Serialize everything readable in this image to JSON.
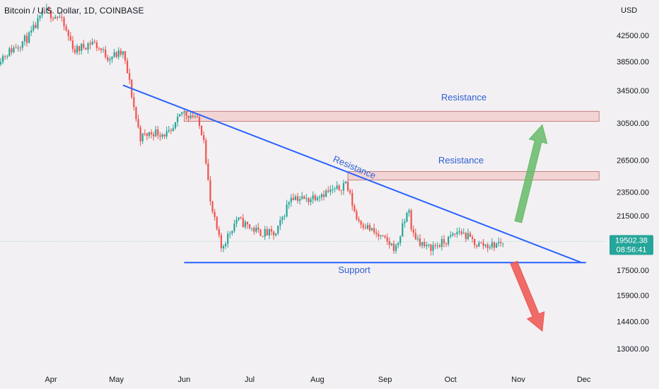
{
  "header": {
    "title": "Bitcoin / U.S. Dollar, 1D, COINBASE",
    "currency": "USD"
  },
  "price_tag": {
    "price": "19502.38",
    "countdown": "08:56:41",
    "color": "#26a69a"
  },
  "chart_data": {
    "type": "candlestick",
    "title": "Bitcoin / U.S. Dollar, 1D, COINBASE",
    "y_axis_unit": "USD",
    "y_scale": "log",
    "y_ticks": [
      42500,
      38500,
      34500,
      30500,
      26500,
      23500,
      21500,
      17500,
      15900,
      14400,
      13000
    ],
    "y_tick_labels": [
      "42500.00",
      "38500.00",
      "34500.00",
      "30500.00",
      "26500.00",
      "23500.00",
      "21500.00",
      "17500.00",
      "15900.00",
      "14400.00",
      "13000.00"
    ],
    "x_tick_labels": [
      "Apr",
      "May",
      "Jun",
      "Jul",
      "Aug",
      "Sep",
      "Oct",
      "Nov",
      "Dec"
    ],
    "x_tick_dates": [
      "2022-04-01",
      "2022-05-01",
      "2022-06-01",
      "2022-07-01",
      "2022-08-01",
      "2022-09-01",
      "2022-10-01",
      "2022-11-01",
      "2022-12-01"
    ],
    "colors": {
      "up": "#26a69a",
      "down": "#ef5350",
      "trendline": "#2962ff",
      "zone_fill": "#f3d2d2",
      "zone_border": "#b35c5c",
      "arrow_up": "#66bb6a",
      "arrow_down": "#ef5350"
    },
    "price_path": [
      {
        "date": "2022-03-08",
        "close": 38800
      },
      {
        "date": "2022-03-15",
        "close": 40500
      },
      {
        "date": "2022-03-22",
        "close": 42300
      },
      {
        "date": "2022-03-29",
        "close": 46500
      },
      {
        "date": "2022-04-05",
        "close": 45500
      },
      {
        "date": "2022-04-12",
        "close": 40100
      },
      {
        "date": "2022-04-20",
        "close": 41500
      },
      {
        "date": "2022-04-27",
        "close": 39200
      },
      {
        "date": "2022-05-04",
        "close": 39700
      },
      {
        "date": "2022-05-07",
        "close": 35500
      },
      {
        "date": "2022-05-10",
        "close": 31000
      },
      {
        "date": "2022-05-12",
        "close": 28900
      },
      {
        "date": "2022-05-18",
        "close": 29500
      },
      {
        "date": "2022-05-26",
        "close": 29200
      },
      {
        "date": "2022-05-31",
        "close": 31800
      },
      {
        "date": "2022-06-06",
        "close": 31300
      },
      {
        "date": "2022-06-10",
        "close": 29000
      },
      {
        "date": "2022-06-13",
        "close": 22500
      },
      {
        "date": "2022-06-18",
        "close": 19000
      },
      {
        "date": "2022-06-25",
        "close": 21200
      },
      {
        "date": "2022-07-05",
        "close": 20200
      },
      {
        "date": "2022-07-13",
        "close": 20000
      },
      {
        "date": "2022-07-20",
        "close": 23200
      },
      {
        "date": "2022-07-27",
        "close": 22800
      },
      {
        "date": "2022-08-01",
        "close": 23300
      },
      {
        "date": "2022-08-10",
        "close": 23700
      },
      {
        "date": "2022-08-14",
        "close": 24400
      },
      {
        "date": "2022-08-19",
        "close": 21300
      },
      {
        "date": "2022-08-28",
        "close": 20000
      },
      {
        "date": "2022-09-06",
        "close": 19000
      },
      {
        "date": "2022-09-12",
        "close": 22200
      },
      {
        "date": "2022-09-13",
        "close": 20200
      },
      {
        "date": "2022-09-20",
        "close": 19000
      },
      {
        "date": "2022-09-28",
        "close": 19400
      },
      {
        "date": "2022-10-05",
        "close": 20300
      },
      {
        "date": "2022-10-13",
        "close": 19300
      },
      {
        "date": "2022-10-20",
        "close": 19200
      },
      {
        "date": "2022-10-25",
        "close": 19502
      }
    ],
    "trendlines": [
      {
        "name": "descending resistance",
        "from": {
          "date": "2022-05-04",
          "price": 35200
        },
        "to": {
          "date": "2022-11-30",
          "price": 18000
        }
      },
      {
        "name": "support",
        "from": {
          "date": "2022-06-01",
          "price": 18000
        },
        "to": {
          "date": "2022-12-02",
          "price": 18000
        }
      }
    ],
    "resistance_zones": [
      {
        "label": "Resistance",
        "from_date": "2022-06-01",
        "to_date": "2022-12-08",
        "low": 30700,
        "high": 31900
      },
      {
        "label": "Resistance",
        "from_date": "2022-08-15",
        "to_date": "2022-12-08",
        "low": 24600,
        "high": 25400
      }
    ],
    "annotations": {
      "zone_top_label": "Resistance",
      "zone_mid_label": "Resistance",
      "trendline_label": "Resistance",
      "support_label": "Support"
    },
    "arrows": [
      {
        "direction": "up",
        "from": {
          "date": "2022-11-01",
          "price": 21000
        },
        "to": {
          "date": "2022-11-12",
          "price": 30300
        }
      },
      {
        "direction": "down",
        "from": {
          "date": "2022-10-30",
          "price": 18000
        },
        "to": {
          "date": "2022-11-12",
          "price": 13900
        }
      }
    ]
  }
}
